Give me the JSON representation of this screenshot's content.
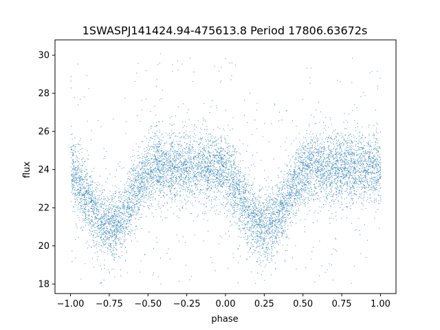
{
  "chart_data": {
    "type": "scatter",
    "title": "1SWASPJ141424.94-475613.8 Period 17806.63672s",
    "xlabel": "phase",
    "ylabel": "flux",
    "xlim": [
      -1.1,
      1.1
    ],
    "ylim": [
      17.5,
      30.8
    ],
    "xticks": [
      -1.0,
      -0.75,
      -0.5,
      -0.25,
      0.0,
      0.25,
      0.5,
      0.75,
      1.0
    ],
    "xtick_labels": [
      "−1.00",
      "−0.75",
      "−0.50",
      "−0.25",
      "0.00",
      "0.25",
      "0.50",
      "0.75",
      "1.00"
    ],
    "yticks": [
      18,
      20,
      22,
      24,
      26,
      28,
      30
    ],
    "ytick_labels": [
      "18",
      "20",
      "22",
      "24",
      "26",
      "28",
      "30"
    ],
    "grid": false,
    "point_color": "#1f77b4",
    "series": [
      {
        "x_range": [
          -1.0,
          1.0
        ],
        "baseline_flux": 24.1,
        "scatter_sigma": 0.9,
        "y_clip": [
          18.0,
          30.2
        ],
        "eclipse_minima": [
          {
            "phase": -0.75,
            "flux": 21.0
          },
          {
            "phase": 0.25,
            "flux": 21.0
          }
        ],
        "eclipse_half_width": 0.3
      }
    ]
  }
}
